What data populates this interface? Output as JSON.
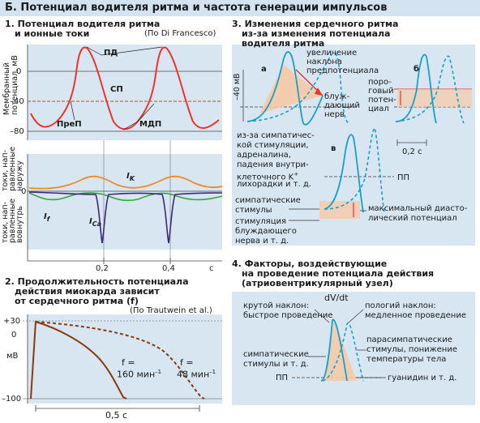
{
  "header": {
    "title": "Б. Потенциал водителя ритма и частота генерации импульсов"
  },
  "panel1": {
    "title_line1": "1. Потенциал водителя ритма",
    "title_line2": "и ионные токи",
    "source": "(По Di Francesco)",
    "ylabel_top": "Мембранный",
    "ylabel_bottom": "потенциал, мВ",
    "ticks_mv": [
      "0",
      "–40",
      "–80"
    ],
    "labels": {
      "pd": "ПД",
      "sp": "СП",
      "prep": "ПреП",
      "mdp": "МДП"
    },
    "currents_ylabel": [
      "токи, нап-",
      "равленные",
      "наружу"
    ],
    "currents_ylabel2": [
      "токи, нап-",
      "равленные",
      "вовнутрь"
    ],
    "current_labels": {
      "ik": "I",
      "ik_sub": "K",
      "if": "I",
      "if_sub": "f",
      "ica": "I",
      "ica_sub": "Ca"
    },
    "zero_tick": "0",
    "time_ticks": [
      "0,2",
      "0,4",
      "c"
    ]
  },
  "panel2": {
    "title_line1": "2. Продолжительность потенциала",
    "title_line2": "действия миокарда зависит",
    "title_line3": "от сердечного ритма (f)",
    "source": "(По Trautwein et al.)",
    "ticks": [
      "+30",
      "0",
      "–100"
    ],
    "unit": "мВ",
    "curve1_f": "f =",
    "curve1_val": "160 мин",
    "curve1_sup": "–1",
    "curve2_f": "f =",
    "curve2_val": "48 мин",
    "curve2_sup": "–1",
    "time_label": "0,5 с"
  },
  "panel3": {
    "title_line1": "3. Изменения сердечного ритма",
    "title_line2": "из-за изменения потенциала",
    "title_line3": "водителя ритма",
    "ylabel": "–40 мВ",
    "label_a": "а",
    "label_b": "б",
    "label_v": "в",
    "slope_increase": [
      "увеличение",
      "наклона",
      "предпотенциала"
    ],
    "vagus": [
      "блуж-",
      "дающий",
      "нерв"
    ],
    "threshold": [
      "поро-",
      "говый",
      "потен-",
      "циал"
    ],
    "sympathetic_causes": [
      "из-за симпатичес-",
      "кой стимуляции,",
      "адреналина,",
      "падения внутри-",
      "клеточного K",
      "лихорадки и т. д."
    ],
    "k_sup": "+",
    "time_scale": "0,2 с",
    "pp": "ПП",
    "sympathetic_stimuli": [
      "симпатические",
      "стимулы"
    ],
    "max_diastolic": [
      "максимальный диасто-",
      "лический потенциал"
    ],
    "vagus_stim": [
      "стимуляция",
      "блуждающего",
      "нерва и т. д."
    ]
  },
  "panel4": {
    "title_line1": "4. Факторы, воздействующие",
    "title_line2": "на проведение потенциала действия",
    "title_line3": "(атриовентрикулярный узел)",
    "dvdt": "dV/dt",
    "steep": [
      "крутой наклон:",
      "быстрое проведение"
    ],
    "gentle": [
      "пологий наклон:",
      "медленное проведение"
    ],
    "parasym": [
      "парасимпатические",
      "стимулы, понижение",
      "температуры тела"
    ],
    "sym": [
      "симпатические",
      "стимулы и т. д."
    ],
    "pp": "ПП",
    "guanidine": "гуанидин и т. д."
  },
  "colors": {
    "header_bg": "#d4e3f0",
    "panel_bg": "#d8e6f2",
    "red": "#e8352e",
    "orange": "#f08a1e",
    "green": "#3aa63a",
    "purple": "#3a2a7a",
    "blue": "#1aa0c8",
    "brown": "#8a3a10",
    "peach": "#f6c9a6"
  }
}
